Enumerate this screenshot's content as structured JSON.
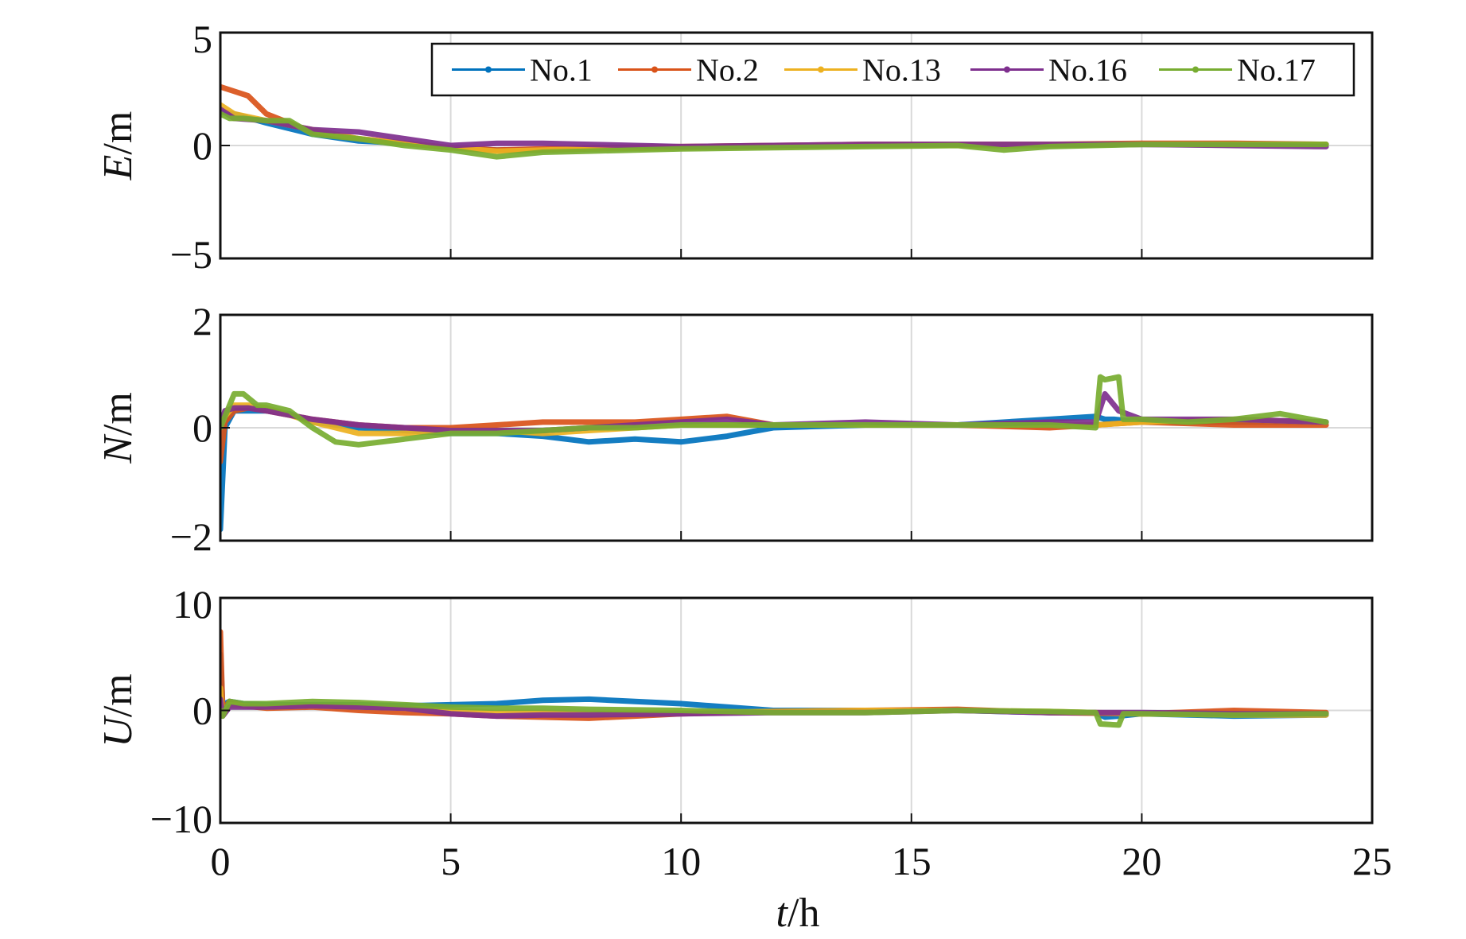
{
  "chart_data": [
    {
      "type": "line",
      "panel": "top",
      "ylabel": {
        "italic": "E",
        "rest": "/m"
      },
      "xlim": [
        0,
        25
      ],
      "ylim": [
        -5,
        5
      ],
      "yticks": [
        5,
        0,
        -5
      ],
      "ytick_labels": [
        "5",
        "0",
        "−5"
      ],
      "xticks": [
        0,
        5,
        10,
        15,
        20,
        25
      ],
      "grid": true,
      "legend": {
        "placement": "top-right",
        "entries": [
          "No.1",
          "No.2",
          "No.13",
          "No.16",
          "No.17"
        ]
      },
      "series": [
        {
          "name": "No.1",
          "x": [
            0,
            0.3,
            1,
            2,
            3,
            4,
            5,
            6,
            7,
            8,
            10,
            12,
            14,
            16,
            18,
            20,
            22,
            24
          ],
          "y": [
            1.5,
            1.4,
            1.0,
            0.5,
            0.2,
            0.1,
            -0.1,
            -0.2,
            -0.2,
            -0.15,
            -0.1,
            -0.05,
            0,
            0,
            0,
            0.05,
            0.05,
            0.05
          ]
        },
        {
          "name": "No.2",
          "x": [
            0,
            0.3,
            0.6,
            1,
            2,
            3,
            4,
            5,
            6,
            7,
            8,
            10,
            12,
            14,
            16,
            18,
            20,
            22,
            24
          ],
          "y": [
            2.6,
            2.4,
            2.2,
            1.4,
            0.6,
            0.3,
            0.1,
            -0.1,
            -0.2,
            -0.15,
            -0.1,
            -0.05,
            0,
            0.05,
            0.05,
            0.05,
            0.1,
            0.1,
            0.05
          ]
        },
        {
          "name": "No.13",
          "x": [
            0,
            0.3,
            1,
            2,
            3,
            4,
            5,
            6,
            7,
            8,
            10,
            12,
            14,
            16,
            18,
            20,
            22,
            24
          ],
          "y": [
            1.8,
            1.4,
            1.1,
            0.7,
            0.3,
            0.1,
            -0.1,
            -0.25,
            -0.2,
            -0.15,
            -0.1,
            -0.05,
            0,
            0,
            0.02,
            0.05,
            0.05,
            0.05
          ]
        },
        {
          "name": "No.16",
          "x": [
            0,
            0.3,
            1,
            2,
            3,
            4,
            5,
            6,
            7,
            8,
            10,
            12,
            14,
            16,
            18,
            20,
            22,
            24
          ],
          "y": [
            1.6,
            1.2,
            1.1,
            0.7,
            0.6,
            0.3,
            0.0,
            0.1,
            0.1,
            0.05,
            -0.05,
            0,
            0.05,
            0.05,
            0.05,
            0.05,
            0.0,
            -0.05
          ]
        },
        {
          "name": "No.17",
          "x": [
            0,
            0.2,
            0.5,
            1,
            1.5,
            2,
            3,
            4,
            5,
            6,
            7,
            8,
            10,
            12,
            14,
            16,
            17,
            18,
            20,
            22,
            24
          ],
          "y": [
            1.4,
            1.2,
            1.2,
            1.1,
            1.1,
            0.5,
            0.3,
            0.0,
            -0.2,
            -0.5,
            -0.3,
            -0.25,
            -0.15,
            -0.1,
            -0.05,
            0,
            -0.2,
            -0.05,
            0.05,
            0.05,
            0.05
          ]
        }
      ]
    },
    {
      "type": "line",
      "panel": "middle",
      "ylabel": {
        "italic": "N",
        "rest": "/m"
      },
      "xlim": [
        0,
        25
      ],
      "ylim": [
        -2,
        2
      ],
      "yticks": [
        2,
        0,
        -2
      ],
      "ytick_labels": [
        "2",
        "0",
        "−2"
      ],
      "xticks": [
        0,
        5,
        10,
        15,
        20,
        25
      ],
      "grid": true,
      "series": [
        {
          "name": "No.1",
          "x": [
            0,
            0.1,
            0.3,
            0.6,
            1,
            1.5,
            2,
            3,
            4,
            5,
            6,
            7,
            8,
            9,
            10,
            11,
            12,
            14,
            16,
            18,
            19,
            19.2,
            19.4,
            20,
            22,
            24
          ],
          "y": [
            -1.8,
            0.0,
            0.3,
            0.3,
            0.3,
            0.25,
            0.1,
            0.0,
            -0.05,
            -0.1,
            -0.1,
            -0.15,
            -0.25,
            -0.2,
            -0.25,
            -0.15,
            0.0,
            0.05,
            0.05,
            0.15,
            0.2,
            0.15,
            0.15,
            0.1,
            0.1,
            0.1
          ]
        },
        {
          "name": "No.2",
          "x": [
            0,
            0.1,
            0.3,
            0.6,
            1,
            2,
            3,
            4,
            5,
            6,
            7,
            8,
            9,
            10,
            11,
            12,
            14,
            16,
            18,
            19,
            20,
            22,
            24
          ],
          "y": [
            -0.6,
            0.1,
            0.3,
            0.35,
            0.3,
            0.15,
            0.05,
            0.0,
            0.0,
            0.05,
            0.1,
            0.1,
            0.1,
            0.15,
            0.2,
            0.05,
            0.05,
            0.05,
            0.0,
            0.05,
            0.1,
            0.05,
            0.05
          ]
        },
        {
          "name": "No.13",
          "x": [
            0,
            0.1,
            0.3,
            0.6,
            1,
            2,
            3,
            4,
            5,
            6,
            7,
            8,
            9,
            10,
            11,
            12,
            14,
            16,
            18,
            19,
            20,
            22,
            24
          ],
          "y": [
            0.0,
            0.2,
            0.4,
            0.4,
            0.35,
            0.1,
            -0.1,
            -0.1,
            -0.05,
            -0.05,
            -0.1,
            -0.05,
            0.0,
            0.05,
            0.05,
            0.05,
            0.05,
            0.05,
            0.05,
            0.05,
            0.1,
            0.15,
            0.1
          ]
        },
        {
          "name": "No.16",
          "x": [
            0,
            0.1,
            0.3,
            0.6,
            1,
            2,
            3,
            4,
            5,
            6,
            7,
            8,
            9,
            10,
            11,
            12,
            14,
            16,
            18,
            19,
            19.2,
            19.5,
            20,
            22,
            24
          ],
          "y": [
            0.0,
            0.3,
            0.35,
            0.35,
            0.3,
            0.15,
            0.05,
            0.0,
            -0.05,
            -0.05,
            -0.05,
            0.0,
            0.05,
            0.1,
            0.15,
            0.05,
            0.1,
            0.05,
            0.1,
            0.1,
            0.6,
            0.3,
            0.15,
            0.15,
            0.1
          ]
        },
        {
          "name": "No.17",
          "x": [
            0,
            0.1,
            0.3,
            0.5,
            0.8,
            1,
            1.5,
            2,
            2.5,
            3,
            4,
            5,
            6,
            7,
            8,
            9,
            10,
            11,
            12,
            14,
            16,
            18,
            19,
            19.1,
            19.2,
            19.5,
            19.6,
            20,
            21,
            22,
            23,
            24
          ],
          "y": [
            0.0,
            0.2,
            0.6,
            0.6,
            0.4,
            0.4,
            0.3,
            0.0,
            -0.25,
            -0.3,
            -0.2,
            -0.1,
            -0.1,
            -0.05,
            0.0,
            0.0,
            0.05,
            0.05,
            0.05,
            0.05,
            0.05,
            0.05,
            0.0,
            0.9,
            0.85,
            0.9,
            0.15,
            0.15,
            0.1,
            0.15,
            0.25,
            0.1
          ]
        }
      ]
    },
    {
      "type": "line",
      "panel": "bottom",
      "ylabel": {
        "italic": "U",
        "rest": "/m"
      },
      "xlabel": {
        "italic": "t",
        "rest": "/h"
      },
      "xlim": [
        0,
        25
      ],
      "ylim": [
        -10,
        10
      ],
      "yticks": [
        10,
        0,
        -10
      ],
      "ytick_labels": [
        "10",
        "0",
        "−10"
      ],
      "xticks": [
        0,
        5,
        10,
        15,
        20,
        25
      ],
      "xtick_labels": [
        "0",
        "5",
        "10",
        "15",
        "20",
        "25"
      ],
      "grid": true,
      "series": [
        {
          "name": "No.1",
          "x": [
            0,
            0.05,
            0.2,
            0.5,
            1,
            2,
            3,
            4,
            5,
            6,
            7,
            8,
            9,
            10,
            11,
            12,
            14,
            16,
            18,
            19,
            19.2,
            19.5,
            20,
            22,
            24
          ],
          "y": [
            5,
            0.5,
            0.8,
            0.6,
            0.5,
            0.5,
            0.5,
            0.4,
            0.5,
            0.6,
            0.9,
            1.0,
            0.8,
            0.6,
            0.3,
            0.0,
            0.0,
            0.0,
            -0.2,
            -0.2,
            -0.6,
            -0.5,
            -0.3,
            -0.5,
            -0.4
          ]
        },
        {
          "name": "No.2",
          "x": [
            0,
            0.05,
            0.2,
            0.5,
            1,
            2,
            3,
            4,
            5,
            6,
            7,
            8,
            9,
            10,
            12,
            14,
            16,
            18,
            20,
            22,
            24
          ],
          "y": [
            7,
            0.0,
            0.8,
            0.4,
            0.2,
            0.3,
            0.0,
            -0.2,
            -0.3,
            -0.5,
            -0.6,
            -0.7,
            -0.5,
            -0.3,
            -0.1,
            0.0,
            0.1,
            -0.2,
            -0.3,
            0.0,
            -0.2
          ]
        },
        {
          "name": "No.13",
          "x": [
            0,
            0.05,
            0.2,
            0.5,
            1,
            2,
            3,
            4,
            5,
            6,
            7,
            8,
            10,
            12,
            14,
            16,
            18,
            20,
            22,
            24
          ],
          "y": [
            2,
            -0.5,
            0.5,
            0.4,
            0.3,
            0.4,
            0.3,
            0.2,
            0.0,
            -0.2,
            -0.2,
            -0.3,
            -0.2,
            -0.1,
            0.0,
            0.0,
            -0.1,
            -0.3,
            -0.4,
            -0.4
          ]
        },
        {
          "name": "No.16",
          "x": [
            0,
            0.05,
            0.2,
            0.5,
            1,
            2,
            3,
            4,
            5,
            6,
            7,
            8,
            10,
            12,
            14,
            16,
            18,
            20,
            22,
            24
          ],
          "y": [
            1,
            -0.5,
            0.3,
            0.3,
            0.3,
            0.4,
            0.3,
            0.2,
            -0.3,
            -0.5,
            -0.4,
            -0.4,
            -0.3,
            -0.2,
            -0.2,
            0.0,
            -0.2,
            -0.2,
            -0.3,
            -0.3
          ]
        },
        {
          "name": "No.17",
          "x": [
            0,
            0.05,
            0.2,
            0.5,
            1,
            2,
            3,
            4,
            5,
            6,
            7,
            8,
            10,
            12,
            14,
            16,
            18,
            19,
            19.1,
            19.5,
            19.6,
            20,
            22,
            24
          ],
          "y": [
            0,
            -0.5,
            0.8,
            0.6,
            0.6,
            0.8,
            0.7,
            0.5,
            0.3,
            0.2,
            0.2,
            0.1,
            0.0,
            -0.2,
            -0.2,
            0.0,
            -0.1,
            -0.2,
            -1.2,
            -1.3,
            -0.3,
            -0.3,
            -0.4,
            -0.3
          ]
        }
      ]
    }
  ],
  "colors": {
    "No.1": "#0072BD",
    "No.2": "#D95319",
    "No.13": "#EDB120",
    "No.16": "#7E2F8E",
    "No.17": "#77AC30"
  }
}
